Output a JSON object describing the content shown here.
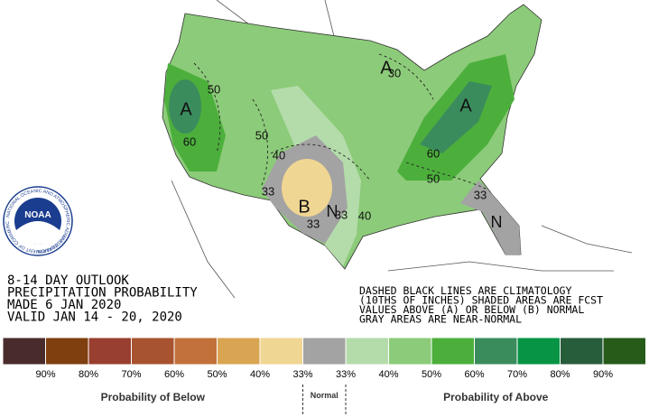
{
  "logo": {
    "name": "NOAA",
    "ring_top": "NATIONAL OCEANIC AND ATMOSPHERIC ADMINISTRATION",
    "ring_bottom": "U.S. DEPARTMENT OF COMMERCE"
  },
  "title_lines": [
    "8-14 DAY OUTLOOK",
    "PRECIPITATION PROBABILITY",
    "MADE  6 JAN 2020",
    "VALID  JAN 14 - 20, 2020"
  ],
  "notes": [
    "DASHED BLACK LINES ARE CLIMATOLOGY",
    "(10THS OF INCHES) SHADED AREAS ARE FCST",
    "VALUES ABOVE (A) OR BELOW (B) NORMAL",
    "GRAY AREAS ARE NEAR-NORMAL"
  ],
  "map_labels": [
    "A",
    "50",
    "60",
    "50",
    "40",
    "33",
    "B",
    "33",
    "N",
    "33",
    "40",
    "A",
    "30",
    "A",
    "60",
    "50",
    "33",
    "N"
  ],
  "legend": {
    "colors": [
      "#4a2b2b",
      "#7f3f0e",
      "#983f2f",
      "#a8532f",
      "#c2713a",
      "#d9a552",
      "#f0d693",
      "#a3a3a3",
      "#b4dcab",
      "#8ccb79",
      "#4caf3c",
      "#3b8c5d",
      "#079444",
      "#285d3b",
      "#265b19"
    ],
    "labels": [
      "90%",
      "80%",
      "70%",
      "60%",
      "50%",
      "40%",
      "33%",
      "33%",
      "40%",
      "50%",
      "60%",
      "70%",
      "80%",
      "90%"
    ],
    "below": "Probability of Below",
    "normal": "Normal",
    "above": "Probability of Above"
  }
}
